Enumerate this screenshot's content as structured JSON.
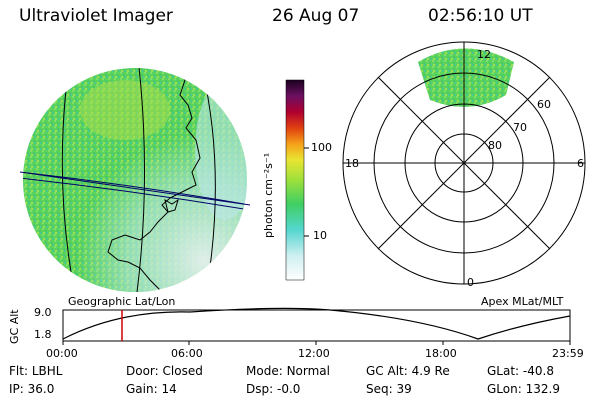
{
  "header": {
    "instrument": "Ultraviolet Imager",
    "date": "26 Aug 07",
    "time": "02:56:10 UT"
  },
  "colorbar": {
    "unit_label": "photon cm⁻²s⁻¹",
    "ticks": [
      "100",
      "10"
    ]
  },
  "left_panel": {
    "caption": "Geographic Lat/Lon"
  },
  "right_panel": {
    "caption": "Apex MLat/MLT",
    "mlt_labels": {
      "top": "12",
      "left": "18",
      "right": "6",
      "bottom": "0"
    },
    "lat_labels": [
      "60",
      "70",
      "80"
    ]
  },
  "altitude_plot": {
    "ylabel": "GC Alt",
    "yticks": [
      "9.0",
      "1.8"
    ],
    "xticks": [
      "00:00",
      "06:00",
      "12:00",
      "18:00",
      "23:59"
    ]
  },
  "status": {
    "row1": [
      {
        "label": "Flt:",
        "value": "LBHL"
      },
      {
        "label": "Door:",
        "value": "Closed"
      },
      {
        "label": "Mode:",
        "value": "Normal"
      },
      {
        "label": "GC Alt:",
        "value": "4.9 Re"
      },
      {
        "label": "GLat:",
        "value": "-40.8"
      }
    ],
    "row2": [
      {
        "label": "IP:",
        "value": "36.0"
      },
      {
        "label": "Gain:",
        "value": "14"
      },
      {
        "label": "Dsp:",
        "value": "-0.0"
      },
      {
        "label": "Seq:",
        "value": "39"
      },
      {
        "label": "GLon:",
        "value": "132.9"
      }
    ]
  },
  "colors": {
    "image_green": "#5bd35b",
    "image_light": "#8ee0e0",
    "marker": "#cc0000",
    "grid_line": "#000000",
    "geo_line": "#0000aa"
  }
}
